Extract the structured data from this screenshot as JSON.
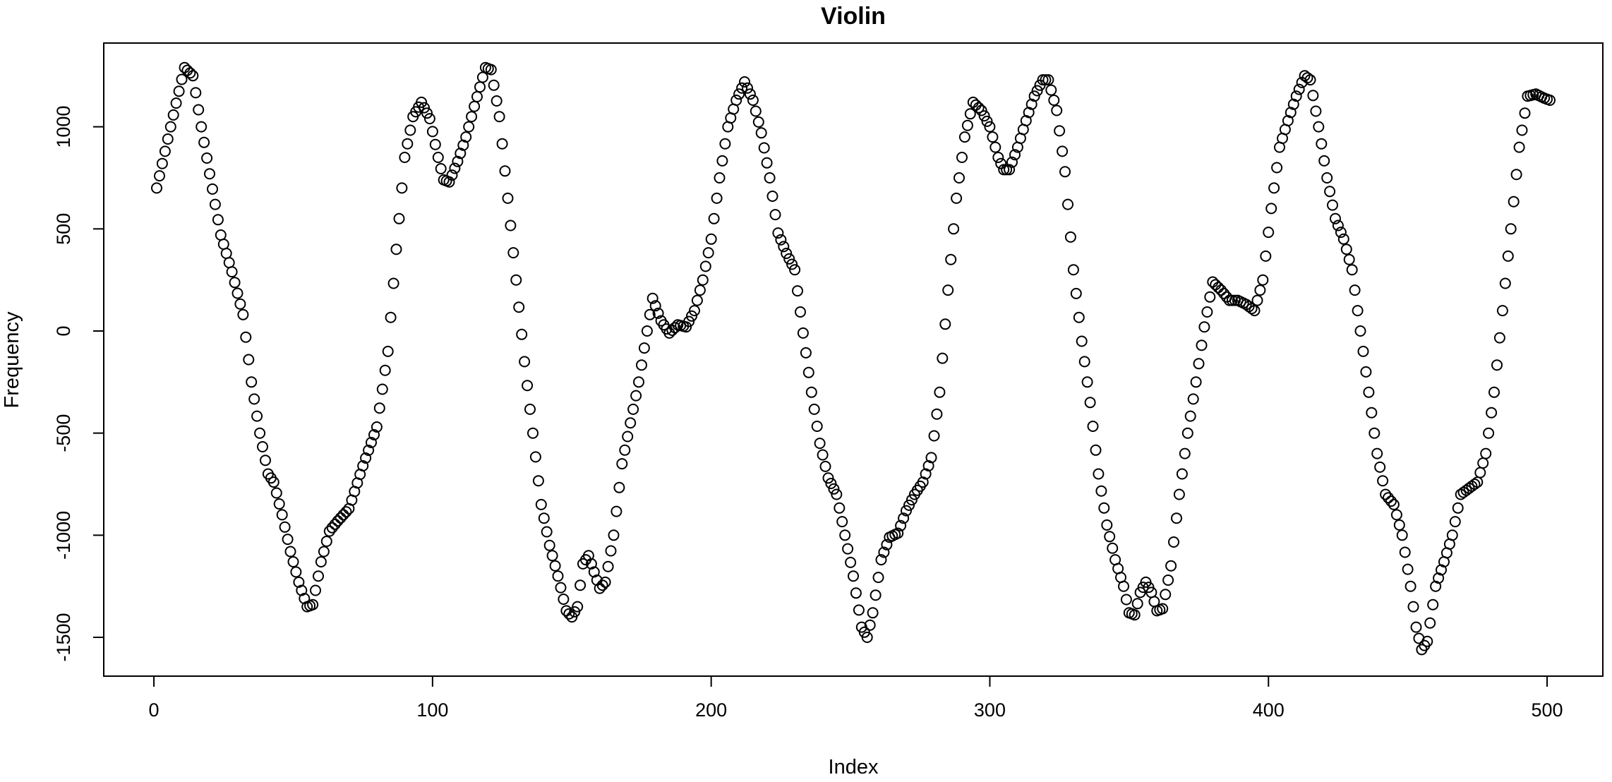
{
  "chart_data": {
    "type": "scatter",
    "title": "Violin",
    "xlabel": "Index",
    "ylabel": "Frequency",
    "xlim": [
      -18,
      520
    ],
    "ylim": [
      -1690,
      1410
    ],
    "x_ticks": [
      0,
      100,
      200,
      300,
      400,
      500
    ],
    "y_ticks": [
      -1500,
      -1000,
      -500,
      0,
      500,
      1000
    ],
    "grid": false,
    "legend": "none",
    "marker": "open-circle",
    "color": "#000000",
    "anchors": [
      [
        1,
        700
      ],
      [
        6,
        1000
      ],
      [
        11,
        1290
      ],
      [
        14,
        1250
      ],
      [
        17,
        1000
      ],
      [
        20,
        770
      ],
      [
        24,
        470
      ],
      [
        28,
        290
      ],
      [
        32,
        80
      ],
      [
        35,
        -250
      ],
      [
        38,
        -500
      ],
      [
        41,
        -700
      ],
      [
        43,
        -740
      ],
      [
        46,
        -900
      ],
      [
        49,
        -1080
      ],
      [
        52,
        -1230
      ],
      [
        55,
        -1350
      ],
      [
        57,
        -1340
      ],
      [
        60,
        -1130
      ],
      [
        63,
        -980
      ],
      [
        66,
        -930
      ],
      [
        70,
        -870
      ],
      [
        75,
        -660
      ],
      [
        80,
        -470
      ],
      [
        84,
        -100
      ],
      [
        87,
        400
      ],
      [
        90,
        850
      ],
      [
        93,
        1050
      ],
      [
        96,
        1120
      ],
      [
        99,
        1040
      ],
      [
        102,
        850
      ],
      [
        104,
        740
      ],
      [
        106,
        730
      ],
      [
        109,
        830
      ],
      [
        112,
        950
      ],
      [
        115,
        1100
      ],
      [
        119,
        1290
      ],
      [
        121,
        1280
      ],
      [
        124,
        1050
      ],
      [
        127,
        650
      ],
      [
        130,
        250
      ],
      [
        133,
        -150
      ],
      [
        136,
        -500
      ],
      [
        139,
        -850
      ],
      [
        142,
        -1050
      ],
      [
        145,
        -1200
      ],
      [
        148,
        -1370
      ],
      [
        150,
        -1400
      ],
      [
        152,
        -1350
      ],
      [
        154,
        -1140
      ],
      [
        156,
        -1100
      ],
      [
        158,
        -1180
      ],
      [
        160,
        -1260
      ],
      [
        162,
        -1230
      ],
      [
        165,
        -1000
      ],
      [
        168,
        -650
      ],
      [
        171,
        -450
      ],
      [
        174,
        -250
      ],
      [
        177,
        0
      ],
      [
        179,
        160
      ],
      [
        182,
        50
      ],
      [
        185,
        -10
      ],
      [
        188,
        30
      ],
      [
        191,
        20
      ],
      [
        194,
        100
      ],
      [
        197,
        250
      ],
      [
        200,
        450
      ],
      [
        203,
        750
      ],
      [
        206,
        1000
      ],
      [
        209,
        1130
      ],
      [
        212,
        1220
      ],
      [
        215,
        1130
      ],
      [
        218,
        970
      ],
      [
        221,
        750
      ],
      [
        224,
        480
      ],
      [
        227,
        380
      ],
      [
        230,
        300
      ],
      [
        233,
        -10
      ],
      [
        236,
        -300
      ],
      [
        239,
        -550
      ],
      [
        242,
        -720
      ],
      [
        245,
        -800
      ],
      [
        248,
        -1000
      ],
      [
        251,
        -1200
      ],
      [
        254,
        -1450
      ],
      [
        256,
        -1500
      ],
      [
        258,
        -1380
      ],
      [
        261,
        -1120
      ],
      [
        264,
        -1010
      ],
      [
        267,
        -990
      ],
      [
        270,
        -880
      ],
      [
        273,
        -800
      ],
      [
        276,
        -740
      ],
      [
        279,
        -620
      ],
      [
        282,
        -300
      ],
      [
        285,
        200
      ],
      [
        288,
        650
      ],
      [
        291,
        950
      ],
      [
        294,
        1120
      ],
      [
        297,
        1080
      ],
      [
        300,
        1000
      ],
      [
        303,
        850
      ],
      [
        305,
        790
      ],
      [
        307,
        790
      ],
      [
        310,
        900
      ],
      [
        313,
        1030
      ],
      [
        316,
        1150
      ],
      [
        319,
        1230
      ],
      [
        321,
        1230
      ],
      [
        324,
        1080
      ],
      [
        327,
        780
      ],
      [
        330,
        300
      ],
      [
        333,
        -50
      ],
      [
        336,
        -350
      ],
      [
        339,
        -700
      ],
      [
        342,
        -950
      ],
      [
        345,
        -1120
      ],
      [
        348,
        -1250
      ],
      [
        350,
        -1380
      ],
      [
        352,
        -1390
      ],
      [
        354,
        -1280
      ],
      [
        356,
        -1230
      ],
      [
        358,
        -1280
      ],
      [
        360,
        -1370
      ],
      [
        362,
        -1360
      ],
      [
        365,
        -1150
      ],
      [
        368,
        -800
      ],
      [
        371,
        -500
      ],
      [
        374,
        -250
      ],
      [
        377,
        20
      ],
      [
        380,
        240
      ],
      [
        383,
        200
      ],
      [
        386,
        150
      ],
      [
        389,
        150
      ],
      [
        392,
        130
      ],
      [
        395,
        100
      ],
      [
        398,
        250
      ],
      [
        401,
        600
      ],
      [
        404,
        900
      ],
      [
        407,
        1030
      ],
      [
        410,
        1150
      ],
      [
        413,
        1250
      ],
      [
        415,
        1230
      ],
      [
        418,
        1000
      ],
      [
        421,
        750
      ],
      [
        424,
        550
      ],
      [
        427,
        450
      ],
      [
        430,
        300
      ],
      [
        433,
        0
      ],
      [
        436,
        -300
      ],
      [
        439,
        -600
      ],
      [
        442,
        -800
      ],
      [
        445,
        -850
      ],
      [
        448,
        -1000
      ],
      [
        451,
        -1250
      ],
      [
        453,
        -1450
      ],
      [
        455,
        -1560
      ],
      [
        457,
        -1520
      ],
      [
        460,
        -1250
      ],
      [
        463,
        -1130
      ],
      [
        466,
        -1000
      ],
      [
        469,
        -800
      ],
      [
        472,
        -770
      ],
      [
        475,
        -740
      ],
      [
        478,
        -600
      ],
      [
        481,
        -300
      ],
      [
        484,
        100
      ],
      [
        487,
        500
      ],
      [
        490,
        900
      ],
      [
        493,
        1150
      ],
      [
        496,
        1160
      ],
      [
        499,
        1140
      ],
      [
        501,
        1130
      ]
    ]
  }
}
